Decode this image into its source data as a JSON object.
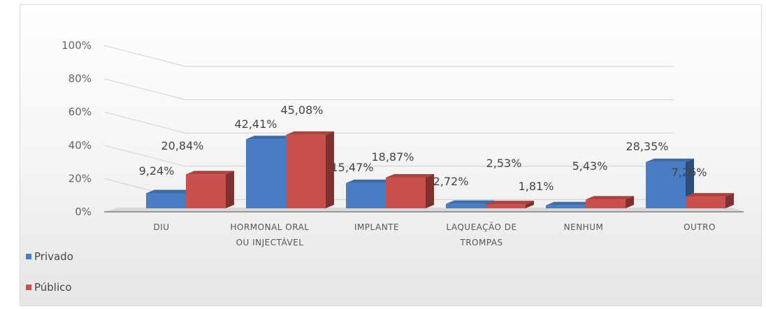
{
  "chart_data": {
    "type": "bar",
    "title": "",
    "xlabel": "",
    "ylabel": "",
    "ylim": [
      0,
      100
    ],
    "y_ticks": [
      "0%",
      "20%",
      "40%",
      "60%",
      "80%",
      "100%"
    ],
    "categories": [
      [
        "DIU"
      ],
      [
        "HORMONAL ORAL",
        "OU INJECTÁVEL"
      ],
      [
        "IMPLANTE"
      ],
      [
        "LAQUEAÇÃO DE",
        "TROMPAS"
      ],
      [
        "NENHUM"
      ],
      [
        "OUTRO"
      ]
    ],
    "series": [
      {
        "name": "Privado",
        "color": "#4a7ec4",
        "values": [
          9.24,
          42.41,
          15.47,
          2.72,
          1.81,
          28.35
        ],
        "labels": [
          "9,24%",
          "42,41%",
          "15,47%",
          "2,72%",
          "1,81%",
          "28,35%"
        ]
      },
      {
        "name": "Público",
        "color": "#c9504d",
        "values": [
          20.84,
          45.08,
          18.87,
          2.53,
          5.43,
          7.26
        ],
        "labels": [
          "20,84%",
          "45,08%",
          "18,87%",
          "2,53%",
          "5,43%",
          "7,26%"
        ]
      }
    ],
    "legend_position": "bottom-left",
    "grid": true
  }
}
